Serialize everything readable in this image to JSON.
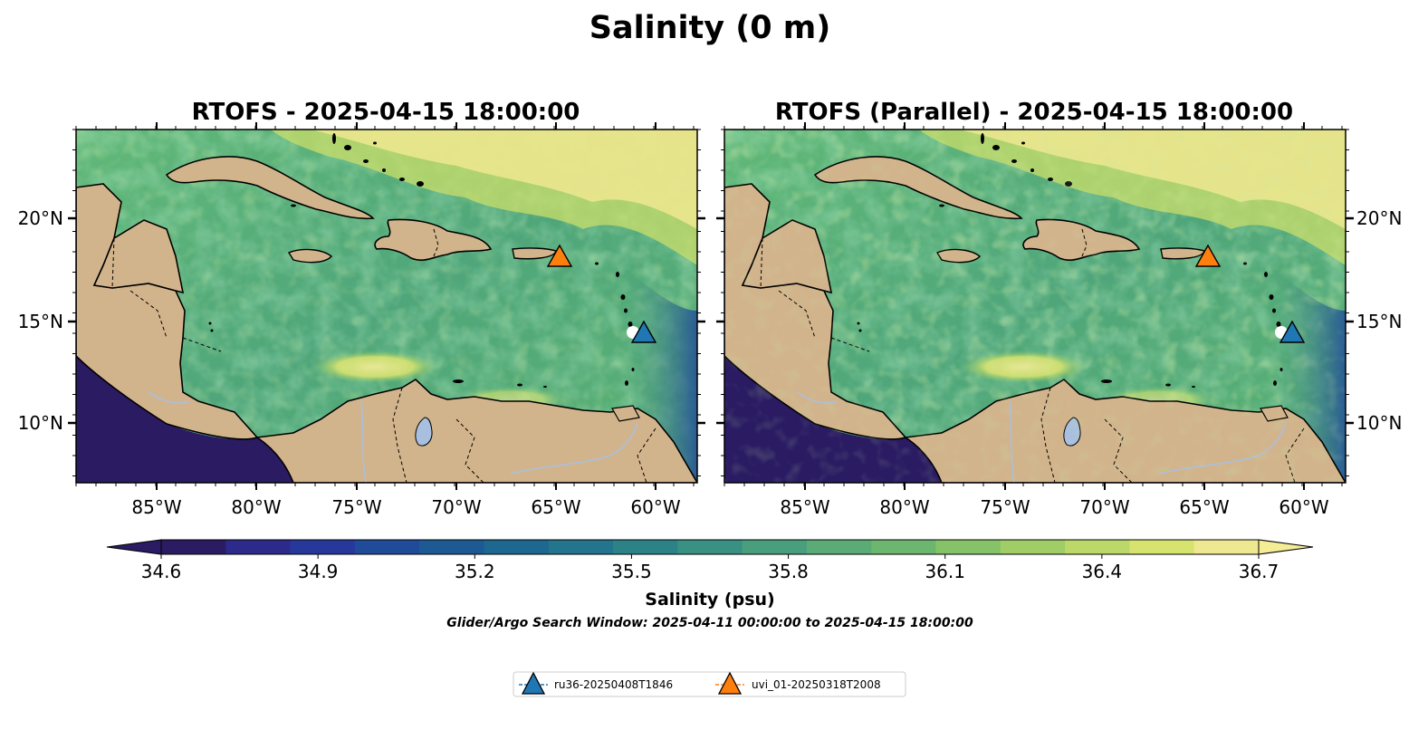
{
  "figure": {
    "suptitle": "Salinity (0 m)",
    "panels": [
      {
        "title": "RTOFS - 2025-04-15 18:00:00"
      },
      {
        "title": "RTOFS (Parallel) - 2025-04-15 18:00:00"
      }
    ],
    "x_ticks": [
      "85°W",
      "80°W",
      "75°W",
      "70°W",
      "65°W",
      "60°W"
    ],
    "y_ticks": [
      "20°N",
      "15°N",
      "10°N"
    ],
    "colorbar": {
      "ticks": [
        "34.6",
        "34.9",
        "35.2",
        "35.5",
        "35.8",
        "36.1",
        "36.4",
        "36.7"
      ],
      "label": "Salinity (psu)",
      "colors": [
        "#2a1b63",
        "#2c2a8a",
        "#26399a",
        "#1f4b98",
        "#1d5a94",
        "#1e6790",
        "#22758c",
        "#2b8388",
        "#389183",
        "#499e7d",
        "#5aab76",
        "#6db66f",
        "#86c268",
        "#a0cd66",
        "#bcd868",
        "#d7e36f",
        "#eee890"
      ]
    },
    "search_window": "Glider/Argo Search Window: 2025-04-11 00:00:00 to 2025-04-15 18:00:00",
    "legend": [
      {
        "label": "ru36-20250408T1846",
        "color": "#1f77b4"
      },
      {
        "label": "uvi_01-20250318T2008",
        "color": "#ff7f0e"
      }
    ],
    "colors": {
      "land": "#d2b48c",
      "ocean_mid": "#56b478",
      "ocean_salty": "#f5ec96",
      "pacific": "#2a1b63",
      "lake": "#a9bfe0"
    }
  },
  "chart_data": {
    "type": "heatmap",
    "title": "Salinity (0 m)",
    "panels": [
      "RTOFS - 2025-04-15 18:00:00",
      "RTOFS (Parallel) - 2025-04-15 18:00:00"
    ],
    "xlabel": "",
    "ylabel": "",
    "xlim": [
      -89,
      -58
    ],
    "ylim": [
      7,
      24.5
    ],
    "x_ticks": [
      -85,
      -80,
      -75,
      -70,
      -65,
      -60
    ],
    "y_ticks": [
      10,
      15,
      20
    ],
    "colorbar": {
      "label": "Salinity (psu)",
      "range": [
        34.6,
        36.7
      ],
      "extend": "both"
    },
    "markers": [
      {
        "name": "ru36-20250408T1846",
        "lon": -60.6,
        "lat": 14.5,
        "color": "#1f77b4"
      },
      {
        "name": "uvi_01-20250318T2008",
        "lon": -64.9,
        "lat": 18.2,
        "color": "#ff7f0e"
      }
    ]
  }
}
